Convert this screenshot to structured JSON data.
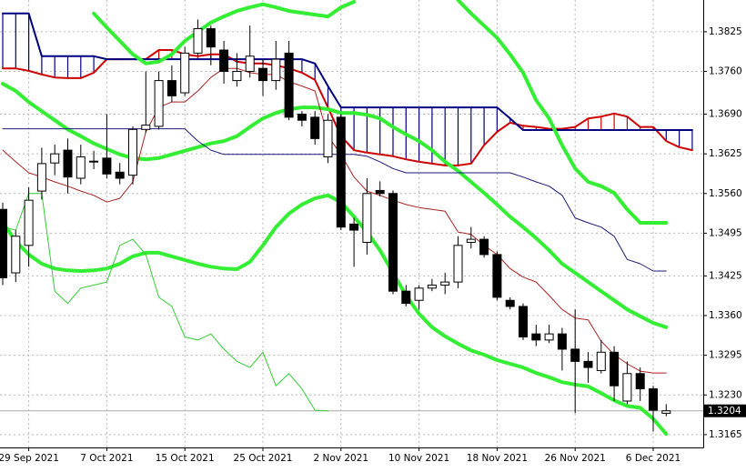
{
  "chart_data": {
    "type": "candlestick",
    "categories": [
      null,
      null,
      "29 Sep 2021",
      null,
      null,
      null,
      null,
      null,
      "7 Oct 2021",
      null,
      null,
      null,
      null,
      null,
      "15 Oct 2021",
      null,
      null,
      null,
      null,
      null,
      "25 Oct 2021",
      null,
      null,
      null,
      null,
      null,
      "2 Nov 2021",
      null,
      null,
      null,
      null,
      null,
      "10 Nov 2021",
      null,
      null,
      null,
      null,
      null,
      "18 Nov 2021",
      null,
      null,
      null,
      null,
      null,
      "26 Nov 2021",
      null,
      null,
      null,
      null,
      null,
      "6 Dec 2021",
      null,
      null,
      null
    ],
    "open": [
      1.3534,
      1.343,
      1.3475,
      1.3564,
      1.361,
      1.3631,
      1.3585,
      1.3612,
      1.3618,
      1.3595,
      1.359,
      1.3665,
      1.367,
      1.3745,
      1.3725,
      1.379,
      1.383,
      1.3795,
      1.3745,
      1.376,
      1.3765,
      1.3745,
      1.379,
      1.369,
      1.3685,
      1.362,
      1.3685,
      1.351,
      1.348,
      1.3565,
      1.356,
      1.34,
      1.3385,
      1.3405,
      1.341,
      1.3415,
      1.348,
      1.3485,
      1.346,
      1.3385,
      1.3375,
      1.333,
      1.332,
      1.333,
      1.3305,
      1.3285,
      1.327,
      1.33,
      1.322,
      1.3265,
      1.324,
      1.32,
      null,
      null
    ],
    "high": [
      1.3545,
      1.35,
      1.357,
      1.3635,
      1.364,
      1.365,
      1.364,
      1.363,
      1.369,
      1.361,
      1.367,
      1.376,
      1.376,
      1.377,
      1.38,
      1.3845,
      1.3835,
      1.381,
      1.379,
      1.3835,
      1.378,
      1.381,
      1.381,
      1.3695,
      1.3695,
      1.369,
      1.369,
      1.352,
      1.3585,
      1.358,
      1.3565,
      1.341,
      1.341,
      1.342,
      1.343,
      1.349,
      1.3505,
      1.349,
      1.3465,
      1.339,
      1.338,
      1.3345,
      1.3345,
      1.334,
      1.337,
      1.33,
      1.332,
      1.331,
      1.3285,
      1.3275,
      1.3245,
      1.3215,
      null,
      null
    ],
    "low": [
      1.341,
      1.3415,
      1.344,
      1.355,
      1.359,
      1.356,
      1.3575,
      1.36,
      1.3585,
      1.3575,
      1.3575,
      1.366,
      1.3665,
      1.371,
      1.372,
      1.3785,
      1.377,
      1.374,
      1.3735,
      1.375,
      1.372,
      1.373,
      1.368,
      1.367,
      1.364,
      1.361,
      1.35,
      1.344,
      1.346,
      1.3555,
      1.3395,
      1.3375,
      1.337,
      1.34,
      1.3395,
      1.3405,
      1.347,
      1.3455,
      1.3385,
      1.337,
      1.332,
      1.331,
      1.3315,
      1.327,
      1.32,
      1.325,
      1.3265,
      1.322,
      1.3215,
      1.322,
      1.317,
      1.3195,
      null,
      null
    ],
    "close": [
      1.3422,
      1.349,
      1.3549,
      1.3609,
      1.3625,
      1.3587,
      1.362,
      1.3613,
      1.3592,
      1.3585,
      1.3665,
      1.3672,
      1.3745,
      1.372,
      1.379,
      1.383,
      1.38,
      1.376,
      1.376,
      1.3785,
      1.3745,
      1.378,
      1.3685,
      1.368,
      1.365,
      1.368,
      1.3505,
      1.35,
      1.356,
      1.356,
      1.34,
      1.338,
      1.3405,
      1.341,
      1.3415,
      1.3475,
      1.3485,
      1.346,
      1.339,
      1.3375,
      1.3325,
      1.332,
      1.333,
      1.3305,
      1.3285,
      1.3275,
      1.33,
      1.3245,
      1.3265,
      1.324,
      1.3205,
      1.3204,
      null,
      null
    ],
    "overlays": [
      {
        "color": "#33ee33",
        "width": 4,
        "values": [
          null,
          null,
          null,
          null,
          null,
          null,
          null,
          1.3855,
          1.3832,
          1.381,
          1.3788,
          1.3773,
          1.3776,
          1.3788,
          1.381,
          1.3825,
          1.384,
          1.385,
          1.3859,
          1.3865,
          1.387,
          1.3865,
          1.3859,
          1.3856,
          1.3853,
          1.385,
          1.3865,
          1.3874,
          null,
          null,
          null,
          null,
          null,
          null,
          null,
          1.3877,
          1.3855,
          1.3835,
          1.3815,
          1.3788,
          1.3758,
          1.3713,
          1.3683,
          1.3639,
          1.3601,
          1.3579,
          1.3572,
          1.3561,
          1.3534,
          1.3512,
          1.3512,
          1.3512,
          null,
          null
        ]
      },
      {
        "color": "#33ee33",
        "width": 4,
        "values": [
          1.374,
          1.3728,
          1.371,
          1.3695,
          1.368,
          1.3665,
          1.3654,
          1.3642,
          1.3633,
          1.3624,
          1.3618,
          1.3616,
          1.3618,
          1.3624,
          1.363,
          1.3636,
          1.3642,
          1.3646,
          1.3654,
          1.3669,
          1.3683,
          1.3692,
          1.3698,
          1.3701,
          1.3701,
          1.3698,
          1.3692,
          1.3692,
          1.3689,
          1.3683,
          1.3669,
          1.3657,
          1.3646,
          1.3631,
          1.3612,
          1.3597,
          1.3579,
          1.3561,
          1.3542,
          1.3522,
          1.3505,
          1.3487,
          1.3467,
          1.3445,
          1.343,
          1.3415,
          1.34,
          1.3385,
          1.337,
          1.3359,
          1.3348,
          1.3341,
          null,
          null
        ]
      },
      {
        "color": "#33ee33",
        "width": 4,
        "values": [
          1.3512,
          1.3482,
          1.346,
          1.3445,
          1.3437,
          1.3434,
          1.3433,
          1.3434,
          1.3437,
          1.3445,
          1.3457,
          1.3463,
          1.3463,
          1.3457,
          1.3451,
          1.3445,
          1.344,
          1.3437,
          1.3436,
          1.3448,
          1.3475,
          1.3505,
          1.3527,
          1.3542,
          1.3552,
          1.3557,
          1.3546,
          1.3522,
          1.3497,
          1.3467,
          1.343,
          1.3393,
          1.3363,
          1.3341,
          1.3326,
          1.3314,
          1.3303,
          1.3296,
          1.3287,
          1.3281,
          1.3275,
          1.3266,
          1.3259,
          1.3251,
          1.3247,
          1.3244,
          1.3233,
          1.3221,
          1.3212,
          1.3209,
          1.3191,
          1.3166,
          null,
          null
        ]
      },
      {
        "color": "#aa2222",
        "width": 1,
        "values": [
          1.3631,
          1.3612,
          1.3594,
          1.3587,
          1.3579,
          1.3572,
          1.3564,
          1.3557,
          1.3546,
          1.3552,
          1.3579,
          1.3661,
          1.3701,
          1.371,
          1.371,
          1.3728,
          1.375,
          1.3765,
          1.3765,
          1.3758,
          1.3755,
          1.3755,
          1.3743,
          1.3736,
          1.3728,
          1.3654,
          1.3624,
          1.3587,
          1.3564,
          1.3557,
          1.3549,
          1.3542,
          1.3537,
          1.3534,
          1.3531,
          1.3497,
          1.3493,
          1.3475,
          1.346,
          1.3437,
          1.3423,
          1.3415,
          1.3393,
          1.337,
          1.3356,
          1.3353,
          1.3318,
          1.3296,
          1.3281,
          1.3269,
          1.3266,
          1.3266,
          null,
          null
        ]
      },
      {
        "color": "#1a1a7a",
        "width": 1,
        "values": [
          1.3666,
          1.3666,
          1.3666,
          1.3666,
          1.3666,
          1.3666,
          1.3666,
          1.3666,
          1.3666,
          1.3666,
          1.3666,
          1.3666,
          1.3666,
          1.3666,
          1.3666,
          1.3646,
          1.3631,
          1.3624,
          1.3624,
          1.3624,
          1.3624,
          1.3624,
          1.3624,
          1.3624,
          1.3624,
          1.3624,
          1.3624,
          1.3624,
          1.3621,
          1.3612,
          1.3601,
          1.3594,
          1.3594,
          1.3594,
          1.3594,
          1.3594,
          1.3594,
          1.3594,
          1.3594,
          1.3594,
          1.3587,
          1.3579,
          1.3572,
          1.3557,
          1.352,
          1.3512,
          1.3505,
          1.349,
          1.3452,
          1.3445,
          1.3433,
          1.3433,
          null,
          null
        ]
      },
      {
        "color": "#33cc33",
        "width": 1,
        "values": [
          1.3505,
          1.35,
          1.356,
          1.356,
          1.34,
          1.338,
          1.3405,
          1.341,
          1.3415,
          1.3475,
          1.3485,
          1.346,
          1.339,
          1.3375,
          1.3325,
          1.332,
          1.333,
          1.3305,
          1.3285,
          1.3275,
          1.33,
          1.3245,
          1.3265,
          1.324,
          1.3205,
          1.3204,
          null,
          null,
          null,
          null,
          null,
          null,
          null,
          null,
          null,
          null,
          null,
          null,
          null,
          null,
          null,
          null,
          null,
          null,
          null,
          null,
          null,
          null,
          null,
          null,
          null,
          null,
          null,
          null
        ]
      }
    ],
    "cloud": {
      "a": {
        "color": "#cc0000",
        "values": [
          1.3765,
          1.3765,
          1.3761,
          1.3755,
          1.375,
          1.3749,
          1.3749,
          1.3758,
          1.378,
          1.378,
          1.378,
          1.378,
          1.3795,
          1.3795,
          1.3788,
          1.3785,
          1.3788,
          1.3788,
          1.3776,
          1.3773,
          1.3773,
          1.377,
          1.3765,
          1.3758,
          1.3746,
          1.3701,
          1.3654,
          1.3631,
          1.3627,
          1.3624,
          1.3621,
          1.3616,
          1.3612,
          1.3609,
          1.3606,
          1.3606,
          1.3609,
          1.3639,
          1.3661,
          1.3676,
          1.3671,
          1.3669,
          1.3666,
          1.3666,
          1.3669,
          1.3683,
          1.3686,
          1.3691,
          1.3686,
          1.3669,
          1.3669,
          1.3646,
          1.3636,
          1.3631
        ]
      },
      "b": {
        "color": "#000080",
        "values": [
          1.3855,
          1.3855,
          1.3855,
          1.3785,
          1.3785,
          1.3785,
          1.3785,
          1.3785,
          1.378,
          1.378,
          1.378,
          1.378,
          1.378,
          1.378,
          1.378,
          1.378,
          1.378,
          1.378,
          1.378,
          1.378,
          1.378,
          1.378,
          1.378,
          1.378,
          1.3773,
          1.3736,
          1.3701,
          1.3701,
          1.3701,
          1.3701,
          1.3701,
          1.3701,
          1.3701,
          1.3701,
          1.3701,
          1.3701,
          1.3701,
          1.3701,
          1.3701,
          1.3683,
          1.3664,
          1.3664,
          1.3664,
          1.3664,
          1.3664,
          1.3664,
          1.3664,
          1.3664,
          1.3664,
          1.3664,
          1.3664,
          1.3664,
          1.3664,
          1.3664
        ]
      }
    },
    "last_price": 1.3204,
    "ylim": [
      1.3144,
      1.3877
    ],
    "yticks": [
      1.3825,
      {
        "value": 1.376,
        "label": "1.3760"
      },
      {
        "value": 1.369,
        "label": "1.3690"
      },
      1.3625,
      {
        "value": 1.356,
        "label": "1.3560"
      },
      1.3495,
      1.3425,
      {
        "value": 1.336,
        "label": "1.3360"
      },
      1.3295,
      {
        "value": 1.323,
        "label": "1.3230"
      },
      1.3165
    ],
    "grid": true
  }
}
